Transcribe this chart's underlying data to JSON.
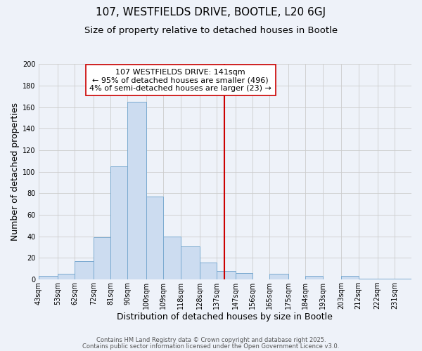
{
  "title": "107, WESTFIELDS DRIVE, BOOTLE, L20 6GJ",
  "subtitle": "Size of property relative to detached houses in Bootle",
  "xlabel": "Distribution of detached houses by size in Bootle",
  "ylabel": "Number of detached properties",
  "bin_labels": [
    "43sqm",
    "53sqm",
    "62sqm",
    "72sqm",
    "81sqm",
    "90sqm",
    "100sqm",
    "109sqm",
    "118sqm",
    "128sqm",
    "137sqm",
    "147sqm",
    "156sqm",
    "165sqm",
    "175sqm",
    "184sqm",
    "193sqm",
    "203sqm",
    "212sqm",
    "222sqm",
    "231sqm"
  ],
  "bin_edges": [
    43,
    53,
    62,
    72,
    81,
    90,
    100,
    109,
    118,
    128,
    137,
    147,
    156,
    165,
    175,
    184,
    193,
    203,
    212,
    222,
    231
  ],
  "counts": [
    3,
    5,
    17,
    39,
    105,
    165,
    77,
    40,
    31,
    16,
    8,
    6,
    0,
    5,
    0,
    3,
    0,
    3,
    1,
    1,
    1
  ],
  "bar_color": "#ccdcf0",
  "bar_edge_color": "#7aaad0",
  "vline_x": 141,
  "vline_color": "#cc0000",
  "annotation_text": "107 WESTFIELDS DRIVE: 141sqm\n← 95% of detached houses are smaller (496)\n4% of semi-detached houses are larger (23) →",
  "annotation_box_color": "white",
  "annotation_border_color": "#cc0000",
  "ylim": [
    0,
    200
  ],
  "yticks": [
    0,
    20,
    40,
    60,
    80,
    100,
    120,
    140,
    160,
    180,
    200
  ],
  "background_color": "#eef2f9",
  "grid_color": "#cccccc",
  "footer_line1": "Contains HM Land Registry data © Crown copyright and database right 2025.",
  "footer_line2": "Contains public sector information licensed under the Open Government Licence v3.0.",
  "title_fontsize": 11,
  "subtitle_fontsize": 9.5,
  "xlabel_fontsize": 9,
  "ylabel_fontsize": 9,
  "tick_fontsize": 7,
  "annotation_fontsize": 8,
  "footer_fontsize": 6
}
